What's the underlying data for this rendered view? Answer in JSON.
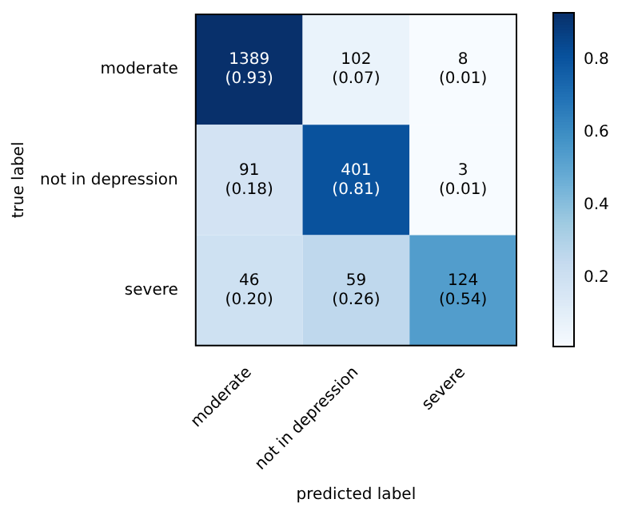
{
  "chart_data": {
    "type": "heatmap",
    "xlabel": "predicted label",
    "ylabel": "true label",
    "categories": [
      "moderate",
      "not in depression",
      "severe"
    ],
    "y_categories": [
      "moderate",
      "not in depression",
      "severe"
    ],
    "cells": [
      [
        0.93,
        0.07,
        0.01
      ],
      [
        0.18,
        0.81,
        0.01
      ],
      [
        0.2,
        0.26,
        0.54
      ]
    ],
    "cell_labels": [
      [
        "1389\n(0.93)",
        "102\n(0.07)",
        "8\n(0.01)"
      ],
      [
        "91\n(0.18)",
        "401\n(0.81)",
        "3\n(0.01)"
      ],
      [
        "46\n(0.20)",
        "59\n(0.26)",
        "124\n(0.54)"
      ]
    ],
    "clim": [
      0.01,
      0.93
    ],
    "cticks": [
      0.2,
      0.4,
      0.6,
      0.8
    ]
  }
}
